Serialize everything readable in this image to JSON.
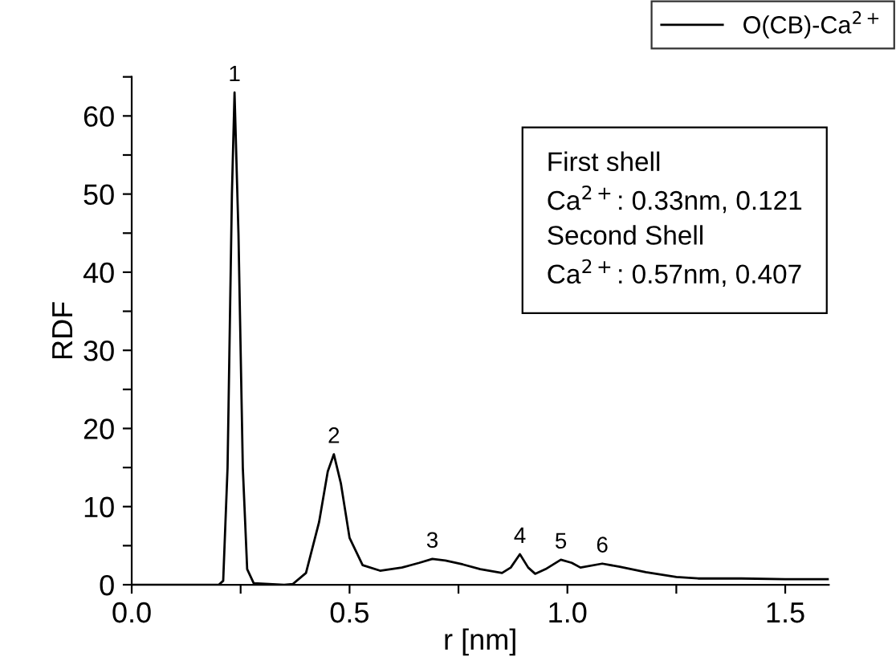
{
  "chart_data": {
    "type": "line",
    "xlabel": "r [nm]",
    "ylabel": "RDF",
    "x": [
      0,
      0.2,
      0.21,
      0.22,
      0.23,
      0.236,
      0.245,
      0.255,
      0.265,
      0.28,
      0.35,
      0.37,
      0.4,
      0.43,
      0.45,
      0.464,
      0.48,
      0.5,
      0.53,
      0.57,
      0.62,
      0.66,
      0.69,
      0.72,
      0.76,
      0.8,
      0.85,
      0.87,
      0.891,
      0.91,
      0.926,
      0.95,
      0.985,
      1.01,
      1.03,
      1.08,
      1.12,
      1.18,
      1.25,
      1.3,
      1.4,
      1.5,
      1.6
    ],
    "series": [
      {
        "name": "O(CB)-Ca$^{2+}$",
        "color": "#000000",
        "values": [
          0,
          0,
          0.5,
          15,
          50,
          63,
          45,
          15,
          2,
          0.2,
          0,
          0.1,
          1.5,
          8,
          14.5,
          16.7,
          13,
          6,
          2.5,
          1.8,
          2.2,
          2.8,
          3.3,
          3.1,
          2.6,
          2.0,
          1.5,
          2.2,
          3.9,
          2.2,
          1.4,
          2.0,
          3.2,
          2.8,
          2.2,
          2.7,
          2.3,
          1.6,
          1.0,
          0.8,
          0.8,
          0.7,
          0.7
        ]
      }
    ],
    "xlim": [
      0,
      1.6
    ],
    "ylim": [
      0,
      65
    ],
    "xticks": [
      {
        "value": 0,
        "label": "0.0"
      },
      {
        "value": 0.25,
        "label": null
      },
      {
        "value": 0.5,
        "label": "0.5"
      },
      {
        "value": 0.75,
        "label": null
      },
      {
        "value": 1.0,
        "label": "1.0"
      },
      {
        "value": 1.25,
        "label": null
      },
      {
        "value": 1.5,
        "label": "1.5"
      }
    ],
    "yticks": [
      0,
      {
        "value": 5,
        "label": null
      },
      10,
      {
        "value": 15,
        "label": null
      },
      20,
      {
        "value": 25,
        "label": null
      },
      30,
      {
        "value": 35,
        "label": null
      },
      40,
      {
        "value": 45,
        "label": null
      },
      50,
      {
        "value": 55,
        "label": null
      },
      60,
      {
        "value": 65,
        "label": null
      }
    ],
    "legend": "top right",
    "line_style": "solid",
    "marker": "none",
    "grid": false,
    "annotations": [
      {
        "text": "1",
        "x": 0.236,
        "y": 63
      },
      {
        "text": "2",
        "x": 0.464,
        "y": 16.7
      },
      {
        "text": "3",
        "x": 0.69,
        "y": 3.3
      },
      {
        "text": "4",
        "x": 0.891,
        "y": 3.9
      },
      {
        "text": "5",
        "x": 0.985,
        "y": 3.2
      },
      {
        "text": "6",
        "x": 1.08,
        "y": 2.7
      },
      "First shell",
      "Ca$^{2+}$: 0.33nm, 0.121",
      "Second Shell",
      "Ca$^{2+}$: 0.57nm, 0.407"
    ]
  }
}
